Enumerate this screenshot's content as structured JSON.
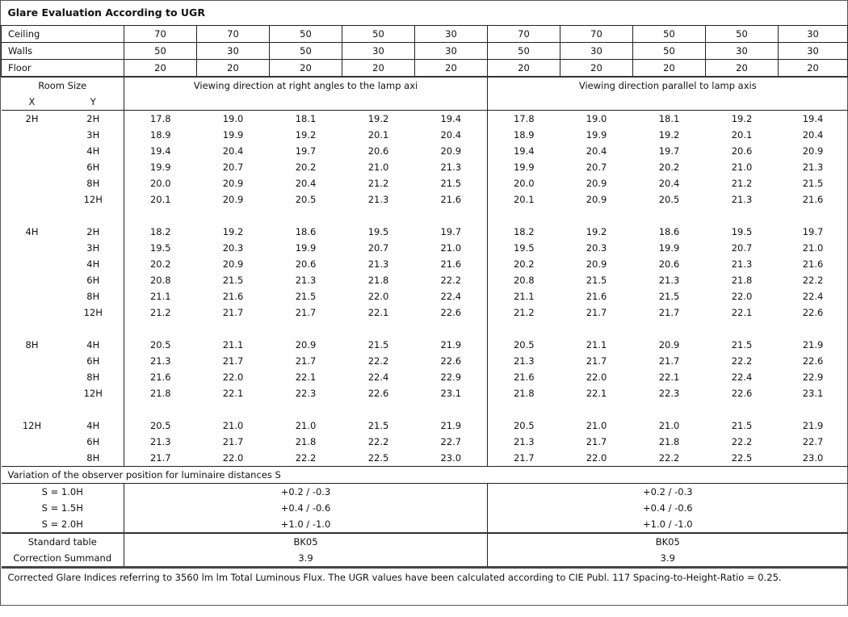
{
  "title": "Glare Evaluation According to UGR",
  "reflectances": [
    {
      "label": "Ceiling",
      "values": [
        "70",
        "70",
        "50",
        "50",
        "30",
        "70",
        "70",
        "50",
        "50",
        "30"
      ]
    },
    {
      "label": "Walls",
      "values": [
        "50",
        "30",
        "50",
        "30",
        "30",
        "50",
        "30",
        "50",
        "30",
        "30"
      ]
    },
    {
      "label": "Floor",
      "values": [
        "20",
        "20",
        "20",
        "20",
        "20",
        "20",
        "20",
        "20",
        "20",
        "20"
      ]
    }
  ],
  "header": {
    "room_size": "Room Size",
    "x": "X",
    "y": "Y",
    "dir_right_angles": "Viewing direction at right angles to the lamp axi",
    "dir_parallel": "Viewing direction parallel to lamp axis"
  },
  "groups": [
    {
      "x": "2H",
      "rows": [
        {
          "y": "2H",
          "values": [
            "17.8",
            "19.0",
            "18.1",
            "19.2",
            "19.4",
            "17.8",
            "19.0",
            "18.1",
            "19.2",
            "19.4"
          ]
        },
        {
          "y": "3H",
          "values": [
            "18.9",
            "19.9",
            "19.2",
            "20.1",
            "20.4",
            "18.9",
            "19.9",
            "19.2",
            "20.1",
            "20.4"
          ]
        },
        {
          "y": "4H",
          "values": [
            "19.4",
            "20.4",
            "19.7",
            "20.6",
            "20.9",
            "19.4",
            "20.4",
            "19.7",
            "20.6",
            "20.9"
          ]
        },
        {
          "y": "6H",
          "values": [
            "19.9",
            "20.7",
            "20.2",
            "21.0",
            "21.3",
            "19.9",
            "20.7",
            "20.2",
            "21.0",
            "21.3"
          ]
        },
        {
          "y": "8H",
          "values": [
            "20.0",
            "20.9",
            "20.4",
            "21.2",
            "21.5",
            "20.0",
            "20.9",
            "20.4",
            "21.2",
            "21.5"
          ]
        },
        {
          "y": "12H",
          "values": [
            "20.1",
            "20.9",
            "20.5",
            "21.3",
            "21.6",
            "20.1",
            "20.9",
            "20.5",
            "21.3",
            "21.6"
          ]
        }
      ]
    },
    {
      "x": "4H",
      "rows": [
        {
          "y": "2H",
          "values": [
            "18.2",
            "19.2",
            "18.6",
            "19.5",
            "19.7",
            "18.2",
            "19.2",
            "18.6",
            "19.5",
            "19.7"
          ]
        },
        {
          "y": "3H",
          "values": [
            "19.5",
            "20.3",
            "19.9",
            "20.7",
            "21.0",
            "19.5",
            "20.3",
            "19.9",
            "20.7",
            "21.0"
          ]
        },
        {
          "y": "4H",
          "values": [
            "20.2",
            "20.9",
            "20.6",
            "21.3",
            "21.6",
            "20.2",
            "20.9",
            "20.6",
            "21.3",
            "21.6"
          ]
        },
        {
          "y": "6H",
          "values": [
            "20.8",
            "21.5",
            "21.3",
            "21.8",
            "22.2",
            "20.8",
            "21.5",
            "21.3",
            "21.8",
            "22.2"
          ]
        },
        {
          "y": "8H",
          "values": [
            "21.1",
            "21.6",
            "21.5",
            "22.0",
            "22.4",
            "21.1",
            "21.6",
            "21.5",
            "22.0",
            "22.4"
          ]
        },
        {
          "y": "12H",
          "values": [
            "21.2",
            "21.7",
            "21.7",
            "22.1",
            "22.6",
            "21.2",
            "21.7",
            "21.7",
            "22.1",
            "22.6"
          ]
        }
      ]
    },
    {
      "x": "8H",
      "rows": [
        {
          "y": "4H",
          "values": [
            "20.5",
            "21.1",
            "20.9",
            "21.5",
            "21.9",
            "20.5",
            "21.1",
            "20.9",
            "21.5",
            "21.9"
          ]
        },
        {
          "y": "6H",
          "values": [
            "21.3",
            "21.7",
            "21.7",
            "22.2",
            "22.6",
            "21.3",
            "21.7",
            "21.7",
            "22.2",
            "22.6"
          ]
        },
        {
          "y": "8H",
          "values": [
            "21.6",
            "22.0",
            "22.1",
            "22.4",
            "22.9",
            "21.6",
            "22.0",
            "22.1",
            "22.4",
            "22.9"
          ]
        },
        {
          "y": "12H",
          "values": [
            "21.8",
            "22.1",
            "22.3",
            "22.6",
            "23.1",
            "21.8",
            "22.1",
            "22.3",
            "22.6",
            "23.1"
          ]
        }
      ]
    },
    {
      "x": "12H",
      "rows": [
        {
          "y": "4H",
          "values": [
            "20.5",
            "21.0",
            "21.0",
            "21.5",
            "21.9",
            "20.5",
            "21.0",
            "21.0",
            "21.5",
            "21.9"
          ]
        },
        {
          "y": "6H",
          "values": [
            "21.3",
            "21.7",
            "21.8",
            "22.2",
            "22.7",
            "21.3",
            "21.7",
            "21.8",
            "22.2",
            "22.7"
          ]
        },
        {
          "y": "8H",
          "values": [
            "21.7",
            "22.0",
            "22.2",
            "22.5",
            "23.0",
            "21.7",
            "22.0",
            "22.2",
            "22.5",
            "23.0"
          ]
        }
      ]
    }
  ],
  "variation": {
    "heading": "Variation of the observer position for luminaire distances S",
    "rows": [
      {
        "label": "S = 1.0H",
        "right_angles": "+0.2 / -0.3",
        "parallel": "+0.2 / -0.3"
      },
      {
        "label": "S = 1.5H",
        "right_angles": "+0.4 / -0.6",
        "parallel": "+0.4 / -0.6"
      },
      {
        "label": "S = 2.0H",
        "right_angles": "+1.0 / -1.0",
        "parallel": "+1.0 / -1.0"
      }
    ]
  },
  "standard": [
    {
      "label": "Standard table",
      "right_angles": "BK05",
      "parallel": "BK05"
    },
    {
      "label": "Correction Summand",
      "right_angles": "3.9",
      "parallel": "3.9"
    }
  ],
  "footnote": "Corrected Glare Indices referring to 3560 lm lm Total Luminous Flux. The UGR values have been calculated according to CIE Publ. 117    Spacing-to-Height-Ratio = 0.25."
}
